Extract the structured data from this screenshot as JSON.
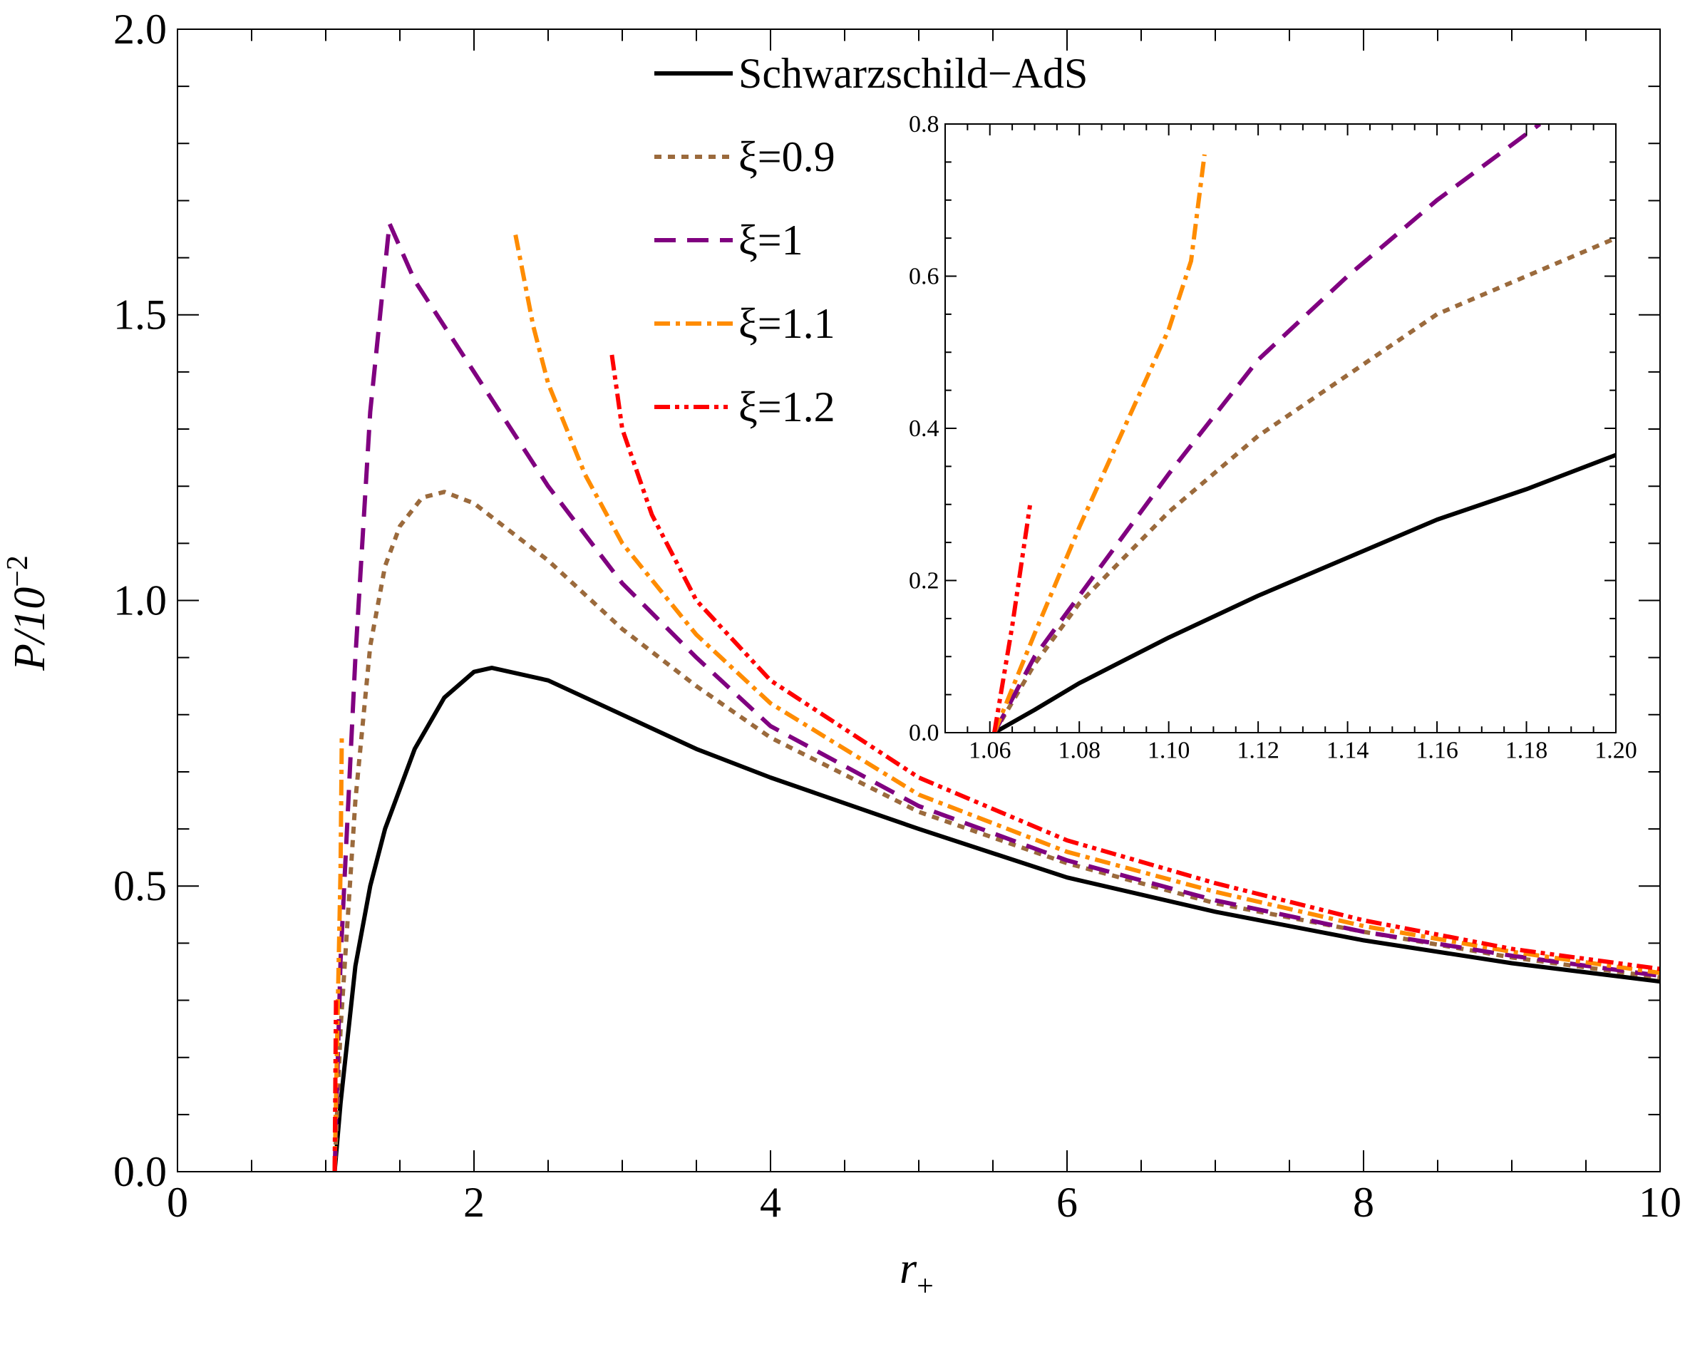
{
  "chart_data": {
    "type": "line",
    "xlabel": "r",
    "xlabel_sub": "+",
    "ylabel": "P/10",
    "ylabel_sup": "−2",
    "xlim": [
      0,
      10
    ],
    "ylim": [
      0,
      2.0
    ],
    "xticks": [
      "0",
      "2",
      "4",
      "6",
      "8",
      "10"
    ],
    "yticks": [
      "0.0",
      "0.5",
      "1.0",
      "1.5",
      "2.0"
    ],
    "legend_position": "top-center",
    "series": [
      {
        "name": "Schwarzschild−AdS",
        "color": "#000000",
        "style": "solid",
        "branches": [
          [
            [
              1.06,
              0
            ],
            [
              1.1,
              0.12
            ],
            [
              1.2,
              0.36
            ],
            [
              1.3,
              0.5
            ],
            [
              1.4,
              0.6
            ],
            [
              1.6,
              0.74
            ],
            [
              1.8,
              0.83
            ],
            [
              2.0,
              0.875
            ],
            [
              2.12,
              0.882
            ],
            [
              2.5,
              0.86
            ],
            [
              3,
              0.8
            ],
            [
              3.5,
              0.74
            ],
            [
              4,
              0.69
            ],
            [
              5,
              0.6
            ],
            [
              6,
              0.515
            ],
            [
              7,
              0.455
            ],
            [
              8,
              0.405
            ],
            [
              9,
              0.365
            ],
            [
              10,
              0.333
            ]
          ]
        ]
      },
      {
        "name": "ξ=0.9",
        "color": "#9B6A3C",
        "style": "dotted",
        "branches": [
          [
            [
              1.06,
              0
            ],
            [
              1.1,
              0.25
            ],
            [
              1.2,
              0.65
            ],
            [
              1.3,
              0.92
            ],
            [
              1.4,
              1.06
            ],
            [
              1.5,
              1.13
            ],
            [
              1.65,
              1.18
            ],
            [
              1.8,
              1.19
            ],
            [
              2,
              1.17
            ],
            [
              2.5,
              1.07
            ],
            [
              3,
              0.95
            ],
            [
              3.5,
              0.85
            ],
            [
              4,
              0.76
            ],
            [
              5,
              0.63
            ],
            [
              6,
              0.54
            ],
            [
              7,
              0.47
            ],
            [
              8,
              0.42
            ],
            [
              9,
              0.375
            ],
            [
              10,
              0.34
            ]
          ]
        ]
      },
      {
        "name": "ξ=1",
        "color": "#800080",
        "style": "dashed",
        "branches": [
          [
            [
              1.06,
              0
            ],
            [
              1.1,
              0.37
            ],
            [
              1.2,
              0.9
            ],
            [
              1.3,
              1.33
            ],
            [
              1.43,
              1.66
            ],
            [
              1.6,
              1.56
            ],
            [
              2,
              1.4
            ],
            [
              2.5,
              1.2
            ],
            [
              3,
              1.03
            ],
            [
              3.5,
              0.9
            ],
            [
              4,
              0.78
            ],
            [
              5,
              0.64
            ],
            [
              6,
              0.545
            ],
            [
              7,
              0.475
            ],
            [
              8,
              0.42
            ],
            [
              9,
              0.378
            ],
            [
              10,
              0.343
            ]
          ]
        ]
      },
      {
        "name": "ξ=1.1",
        "color": "#FF8C00",
        "style": "dashdot",
        "branches": [
          [
            [
              1.06,
              0
            ],
            [
              1.08,
              0.27
            ],
            [
              1.1,
              0.53
            ],
            [
              1.108,
              0.76
            ]
          ],
          [
            [
              2.28,
              1.64
            ],
            [
              2.4,
              1.48
            ],
            [
              2.5,
              1.38
            ],
            [
              2.75,
              1.22
            ],
            [
              3,
              1.1
            ],
            [
              3.5,
              0.94
            ],
            [
              4,
              0.82
            ],
            [
              5,
              0.66
            ],
            [
              6,
              0.56
            ],
            [
              7,
              0.49
            ],
            [
              8,
              0.43
            ],
            [
              9,
              0.385
            ],
            [
              10,
              0.348
            ]
          ]
        ]
      },
      {
        "name": "ξ=1.2",
        "color": "#FF0000",
        "style": "dashdotdot",
        "branches": [
          [
            [
              1.06,
              0
            ],
            [
              1.069,
              0.3
            ]
          ],
          [
            [
              2.93,
              1.43
            ],
            [
              3.0,
              1.3
            ],
            [
              3.2,
              1.15
            ],
            [
              3.5,
              1.0
            ],
            [
              4,
              0.86
            ],
            [
              5,
              0.69
            ],
            [
              6,
              0.58
            ],
            [
              7,
              0.505
            ],
            [
              8,
              0.44
            ],
            [
              9,
              0.39
            ],
            [
              10,
              0.355
            ]
          ]
        ]
      }
    ],
    "inset": {
      "xlim": [
        1.05,
        1.2
      ],
      "ylim": [
        0,
        0.8
      ],
      "xticks": [
        "1.06",
        "1.08",
        "1.10",
        "1.12",
        "1.14",
        "1.16",
        "1.18",
        "1.20"
      ],
      "yticks": [
        "0.0",
        "0.2",
        "0.4",
        "0.6",
        "0.8"
      ],
      "series": [
        [
          [
            1.061,
            0
          ],
          [
            1.07,
            0.03
          ],
          [
            1.08,
            0.065
          ],
          [
            1.09,
            0.095
          ],
          [
            1.1,
            0.125
          ],
          [
            1.12,
            0.18
          ],
          [
            1.14,
            0.23
          ],
          [
            1.16,
            0.28
          ],
          [
            1.18,
            0.32
          ],
          [
            1.2,
            0.365
          ]
        ],
        [
          [
            1.061,
            0
          ],
          [
            1.07,
            0.09
          ],
          [
            1.08,
            0.17
          ],
          [
            1.1,
            0.29
          ],
          [
            1.12,
            0.39
          ],
          [
            1.14,
            0.47
          ],
          [
            1.16,
            0.55
          ],
          [
            1.18,
            0.6
          ],
          [
            1.2,
            0.65
          ]
        ],
        [
          [
            1.061,
            0
          ],
          [
            1.07,
            0.1
          ],
          [
            1.08,
            0.18
          ],
          [
            1.1,
            0.34
          ],
          [
            1.12,
            0.49
          ],
          [
            1.14,
            0.6
          ],
          [
            1.16,
            0.7
          ],
          [
            1.183,
            0.8
          ]
        ],
        [
          [
            1.061,
            0
          ],
          [
            1.07,
            0.13
          ],
          [
            1.08,
            0.27
          ],
          [
            1.09,
            0.4
          ],
          [
            1.1,
            0.53
          ],
          [
            1.105,
            0.62
          ],
          [
            1.108,
            0.76
          ]
        ],
        [
          [
            1.061,
            0
          ],
          [
            1.065,
            0.14
          ],
          [
            1.069,
            0.3
          ]
        ]
      ]
    }
  }
}
